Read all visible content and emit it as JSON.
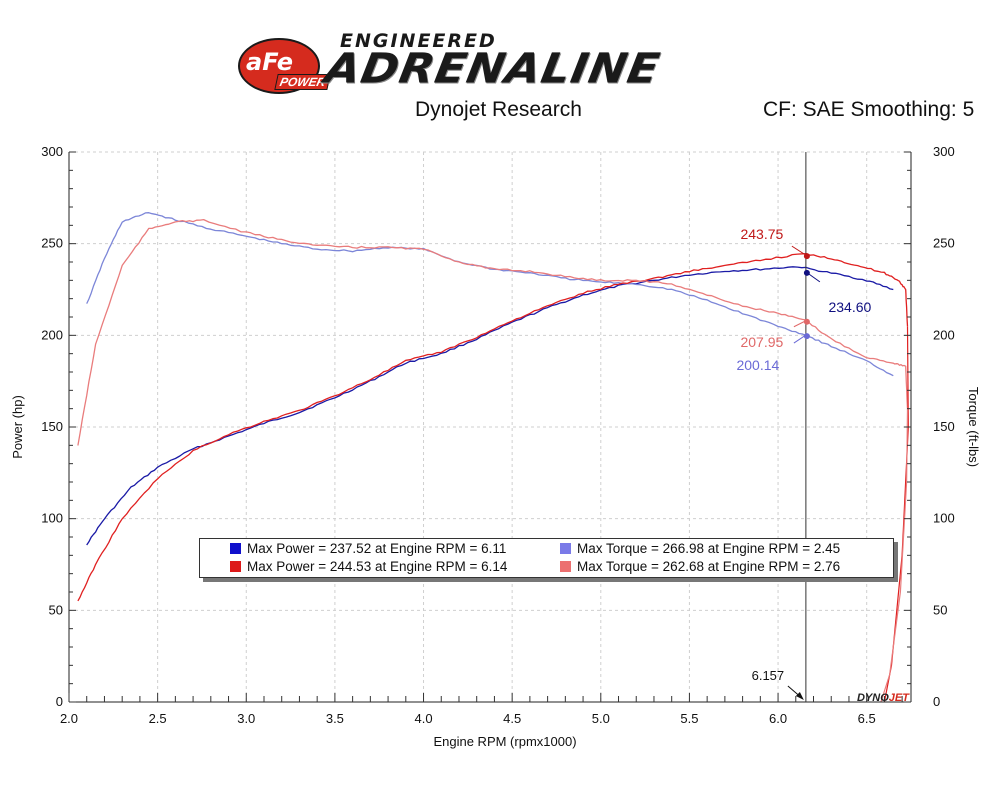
{
  "header": {
    "logo_badge": "aFe",
    "logo_badge_sub": "POWER",
    "logo_top": "ENGINEERED",
    "logo_main": "ADRENALINE",
    "source": "Dynojet Research",
    "settings": "CF: SAE Smoothing: 5"
  },
  "colors": {
    "run1_power": "#1a1aa6",
    "run1_torque": "#7c86d8",
    "run2_power": "#e02020",
    "run2_torque": "#e97c7c",
    "grid": "#cfcfcf",
    "cursor": "#333333"
  },
  "legend": [
    {
      "swatch": "#1010cc",
      "text": "Max Power = 237.52 at Engine RPM = 6.11"
    },
    {
      "swatch": "#7a7ae8",
      "text": "Max Torque = 266.98 at Engine RPM = 2.45"
    },
    {
      "swatch": "#dd1a1a",
      "text": "Max Power = 244.53 at Engine RPM = 6.14"
    },
    {
      "swatch": "#ec7070",
      "text": "Max Torque = 262.68 at Engine RPM = 2.76"
    }
  ],
  "watermark": {
    "part1": "DYNO",
    "part2": "JET"
  },
  "chart_data": {
    "type": "line",
    "xlabel": "Engine RPM (rpmx1000)",
    "ylabel": "Power (hp)",
    "y2label": "Torque (ft-lbs)",
    "xlim": [
      2.0,
      6.75
    ],
    "ylim": [
      0,
      300
    ],
    "y2lim": [
      0,
      300
    ],
    "xticks": [
      "2.0",
      "2.5",
      "3.0",
      "3.5",
      "4.0",
      "4.5",
      "5.0",
      "5.5",
      "6.0",
      "6.5"
    ],
    "yticks": [
      "0",
      "50",
      "100",
      "150",
      "200",
      "250",
      "300"
    ],
    "y2ticks": [
      "0",
      "50",
      "100",
      "150",
      "200",
      "250",
      "300"
    ],
    "grid": true,
    "cursor": {
      "x": 6.157,
      "label": "6.157"
    },
    "annotations": [
      {
        "text": "243.75",
        "x": 6.157,
        "y": 243.75,
        "color": "#c01818",
        "side": "left-above"
      },
      {
        "text": "234.60",
        "x": 6.157,
        "y": 234.6,
        "color": "#101080",
        "side": "right-below"
      },
      {
        "text": "207.95",
        "x": 6.157,
        "y": 207.95,
        "color": "#e06868",
        "side": "left-below"
      },
      {
        "text": "200.14",
        "x": 6.157,
        "y": 200.14,
        "color": "#6a6ad6",
        "side": "left-below2"
      }
    ],
    "series": [
      {
        "color": "#1a1aa6",
        "axis": "left",
        "x": [
          2.1,
          2.2,
          2.35,
          2.5,
          2.7,
          2.9,
          3.1,
          3.3,
          3.5,
          3.7,
          3.9,
          4.1,
          4.3,
          4.5,
          4.7,
          4.9,
          5.1,
          5.3,
          5.5,
          5.7,
          5.9,
          6.11,
          6.3,
          6.5,
          6.65
        ],
        "y": [
          86,
          100,
          117,
          128,
          138,
          145,
          152,
          158,
          166,
          175,
          185,
          190,
          198,
          207,
          215,
          222,
          227,
          230,
          233,
          235,
          236,
          237.5,
          234,
          230,
          225
        ]
      },
      {
        "color": "#7c86d8",
        "axis": "right",
        "x": [
          2.1,
          2.2,
          2.3,
          2.45,
          2.6,
          2.8,
          3.0,
          3.2,
          3.4,
          3.6,
          3.8,
          4.0,
          4.2,
          4.4,
          4.6,
          4.8,
          5.0,
          5.2,
          5.4,
          5.6,
          5.8,
          6.0,
          6.157,
          6.3,
          6.5,
          6.65
        ],
        "y": [
          217,
          242,
          262,
          267,
          263,
          258,
          254,
          250,
          247,
          246,
          248,
          247,
          240,
          236,
          234,
          231,
          229,
          228,
          225,
          219,
          212,
          205,
          200.1,
          194,
          186,
          178
        ]
      },
      {
        "color": "#e02020",
        "axis": "left",
        "x": [
          2.05,
          2.15,
          2.3,
          2.5,
          2.7,
          2.9,
          3.1,
          3.3,
          3.5,
          3.7,
          3.9,
          4.1,
          4.3,
          4.5,
          4.7,
          4.9,
          5.1,
          5.3,
          5.5,
          5.7,
          5.9,
          6.14,
          6.3,
          6.45,
          6.6,
          6.68,
          6.72,
          6.73
        ],
        "y": [
          55,
          75,
          100,
          122,
          137,
          146,
          153,
          159,
          167,
          176,
          186,
          191,
          199,
          208,
          216,
          223,
          228,
          231,
          235,
          238,
          241,
          244.5,
          242,
          238,
          234,
          230,
          225,
          205
        ]
      },
      {
        "color": "#e97c7c",
        "axis": "right",
        "x": [
          2.05,
          2.15,
          2.3,
          2.45,
          2.6,
          2.76,
          3.0,
          3.2,
          3.4,
          3.6,
          3.8,
          4.0,
          4.2,
          4.4,
          4.6,
          4.8,
          5.0,
          5.2,
          5.4,
          5.6,
          5.8,
          6.0,
          6.157,
          6.3,
          6.5,
          6.65,
          6.72,
          6.73
        ],
        "y": [
          140,
          195,
          238,
          258,
          262,
          262.7,
          256,
          252,
          249,
          248,
          248,
          247,
          240,
          236,
          235,
          232,
          230,
          230,
          228,
          222,
          216,
          212,
          208,
          198,
          188,
          185,
          183,
          160
        ]
      }
    ],
    "dropoffs": [
      {
        "color": "#e02020",
        "x": [
          6.73,
          6.735,
          6.7,
          6.64,
          6.6
        ],
        "y": [
          205,
          150,
          80,
          20,
          0
        ]
      },
      {
        "color": "#e97c7c",
        "x": [
          6.73,
          6.725,
          6.69,
          6.63,
          6.58
        ],
        "y": [
          160,
          120,
          60,
          15,
          0
        ]
      }
    ]
  }
}
